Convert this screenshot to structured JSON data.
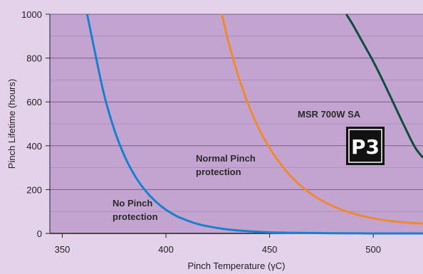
{
  "chart_data": {
    "type": "line",
    "xlabel": "Pinch Temperature (γC)",
    "ylabel": "Pinch Lifetime (hours)",
    "xlim": [
      344,
      524
    ],
    "ylim": [
      0,
      1000
    ],
    "x_ticks": [
      "350",
      "400",
      "450",
      "500"
    ],
    "y_ticks": [
      "0",
      "200",
      "400",
      "600",
      "800",
      "1000"
    ],
    "grid": "horizontal",
    "background_color": "#c3a3cf",
    "series": [
      {
        "name": "No Pinch protection",
        "color": "#1b7fcf",
        "x": [
          362,
          365,
          370,
          375,
          380,
          385,
          390,
          395,
          400,
          405,
          410,
          415,
          420,
          430,
          440,
          450,
          460,
          470,
          480,
          500,
          524
        ],
        "y": [
          1000,
          862,
          640,
          476,
          354,
          263,
          196,
          146,
          108,
          80,
          60,
          44,
          33,
          18,
          10,
          5,
          3,
          2,
          1,
          0,
          0
        ]
      },
      {
        "name": "Normal Pinch protection",
        "color": "#f08a32",
        "x": [
          427,
          430,
          435,
          440,
          445,
          450,
          455,
          460,
          465,
          470,
          475,
          480,
          485,
          490,
          495,
          500,
          505,
          510,
          515,
          520,
          524
        ],
        "y": [
          1000,
          880,
          715,
          582,
          475,
          390,
          320,
          264,
          218,
          181,
          151,
          127,
          107,
          92,
          79,
          69,
          61,
          55,
          50,
          47,
          45
        ]
      },
      {
        "name": "MSR 700W SA",
        "color": "#0e4e3c",
        "x": [
          487,
          490,
          495,
          500,
          505,
          510,
          515,
          520,
          524
        ],
        "y": [
          1000,
          955,
          870,
          785,
          690,
          590,
          490,
          395,
          345
        ]
      }
    ],
    "annotations": {
      "no_pinch_line1": "No Pinch",
      "no_pinch_line2": "protection",
      "normal_line1": "Normal Pinch",
      "normal_line2": "protection",
      "msr": "MSR 700W SA",
      "badge": "P3"
    }
  }
}
